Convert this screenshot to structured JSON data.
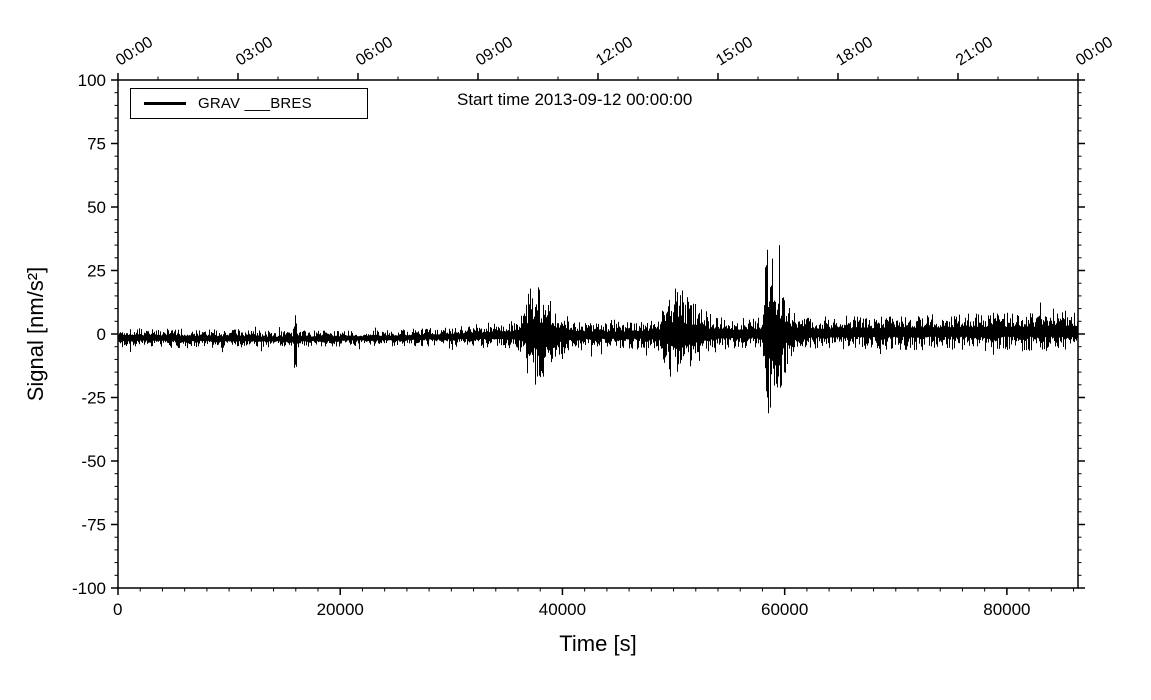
{
  "colors": {
    "foreground": "#000000",
    "background": "#ffffff"
  },
  "chart_data": {
    "type": "line",
    "title": "Start time 2013-09-12 00:00:00",
    "xlabel": "Time [s]",
    "ylabel": "Signal [nm/s²]",
    "xlim": [
      0,
      86400
    ],
    "ylim": [
      -100,
      100
    ],
    "grid": false,
    "legend": {
      "position": "top-left",
      "entries": [
        {
          "label": "GRAV ___BRES",
          "color": "#000000",
          "line_width": 3
        }
      ]
    },
    "x_ticks": {
      "major": [
        0,
        20000,
        40000,
        60000,
        80000
      ],
      "labels": [
        "0",
        "20000",
        "40000",
        "60000",
        "80000"
      ],
      "minor_interval": 2000
    },
    "y_ticks": {
      "major": [
        -100,
        -75,
        -50,
        -25,
        0,
        25,
        50,
        75,
        100
      ],
      "labels": [
        "-100",
        "-75",
        "-50",
        "-25",
        "0",
        "25",
        "50",
        "75",
        "100"
      ],
      "minor_interval": 5
    },
    "top_axis": {
      "major_seconds": [
        0,
        10800,
        21600,
        32400,
        43200,
        54000,
        64800,
        75600,
        86400
      ],
      "labels": [
        "00:00",
        "03:00",
        "06:00",
        "09:00",
        "12:00",
        "15:00",
        "18:00",
        "21:00",
        "00:00"
      ],
      "minor_interval_seconds": 3600
    },
    "series": [
      {
        "name": "GRAV ___BRES",
        "color": "#000000",
        "kind": "seismic-noise-band",
        "baseline_drift": [
          [
            0,
            -1.5
          ],
          [
            15000,
            -2
          ],
          [
            25000,
            -1.5
          ],
          [
            35000,
            -0.5
          ],
          [
            45000,
            -0.5
          ],
          [
            55000,
            0
          ],
          [
            65000,
            0.5
          ],
          [
            86400,
            1
          ]
        ],
        "noise_envelope": [
          [
            0,
            3.2
          ],
          [
            8000,
            3.0
          ],
          [
            14000,
            2.8
          ],
          [
            22000,
            2.5
          ],
          [
            28000,
            2.8
          ],
          [
            32000,
            3.6
          ],
          [
            35000,
            4.6
          ],
          [
            40000,
            4.6
          ],
          [
            44000,
            4.2
          ],
          [
            48000,
            4.8
          ],
          [
            53000,
            4.8
          ],
          [
            57000,
            5.0
          ],
          [
            62000,
            5.2
          ],
          [
            70000,
            5.4
          ],
          [
            80000,
            6.0
          ],
          [
            86400,
            6.6
          ]
        ],
        "events": [
          {
            "x": 15900,
            "peak": 13,
            "rise": 60,
            "decay": 140
          },
          {
            "x": 37300,
            "peak": 11,
            "rise": 500,
            "decay": 1600
          },
          {
            "x": 50100,
            "peak": 10,
            "rise": 700,
            "decay": 1700
          },
          {
            "x": 58400,
            "peak": 24,
            "rise": 220,
            "decay": 1100
          }
        ]
      }
    ]
  }
}
